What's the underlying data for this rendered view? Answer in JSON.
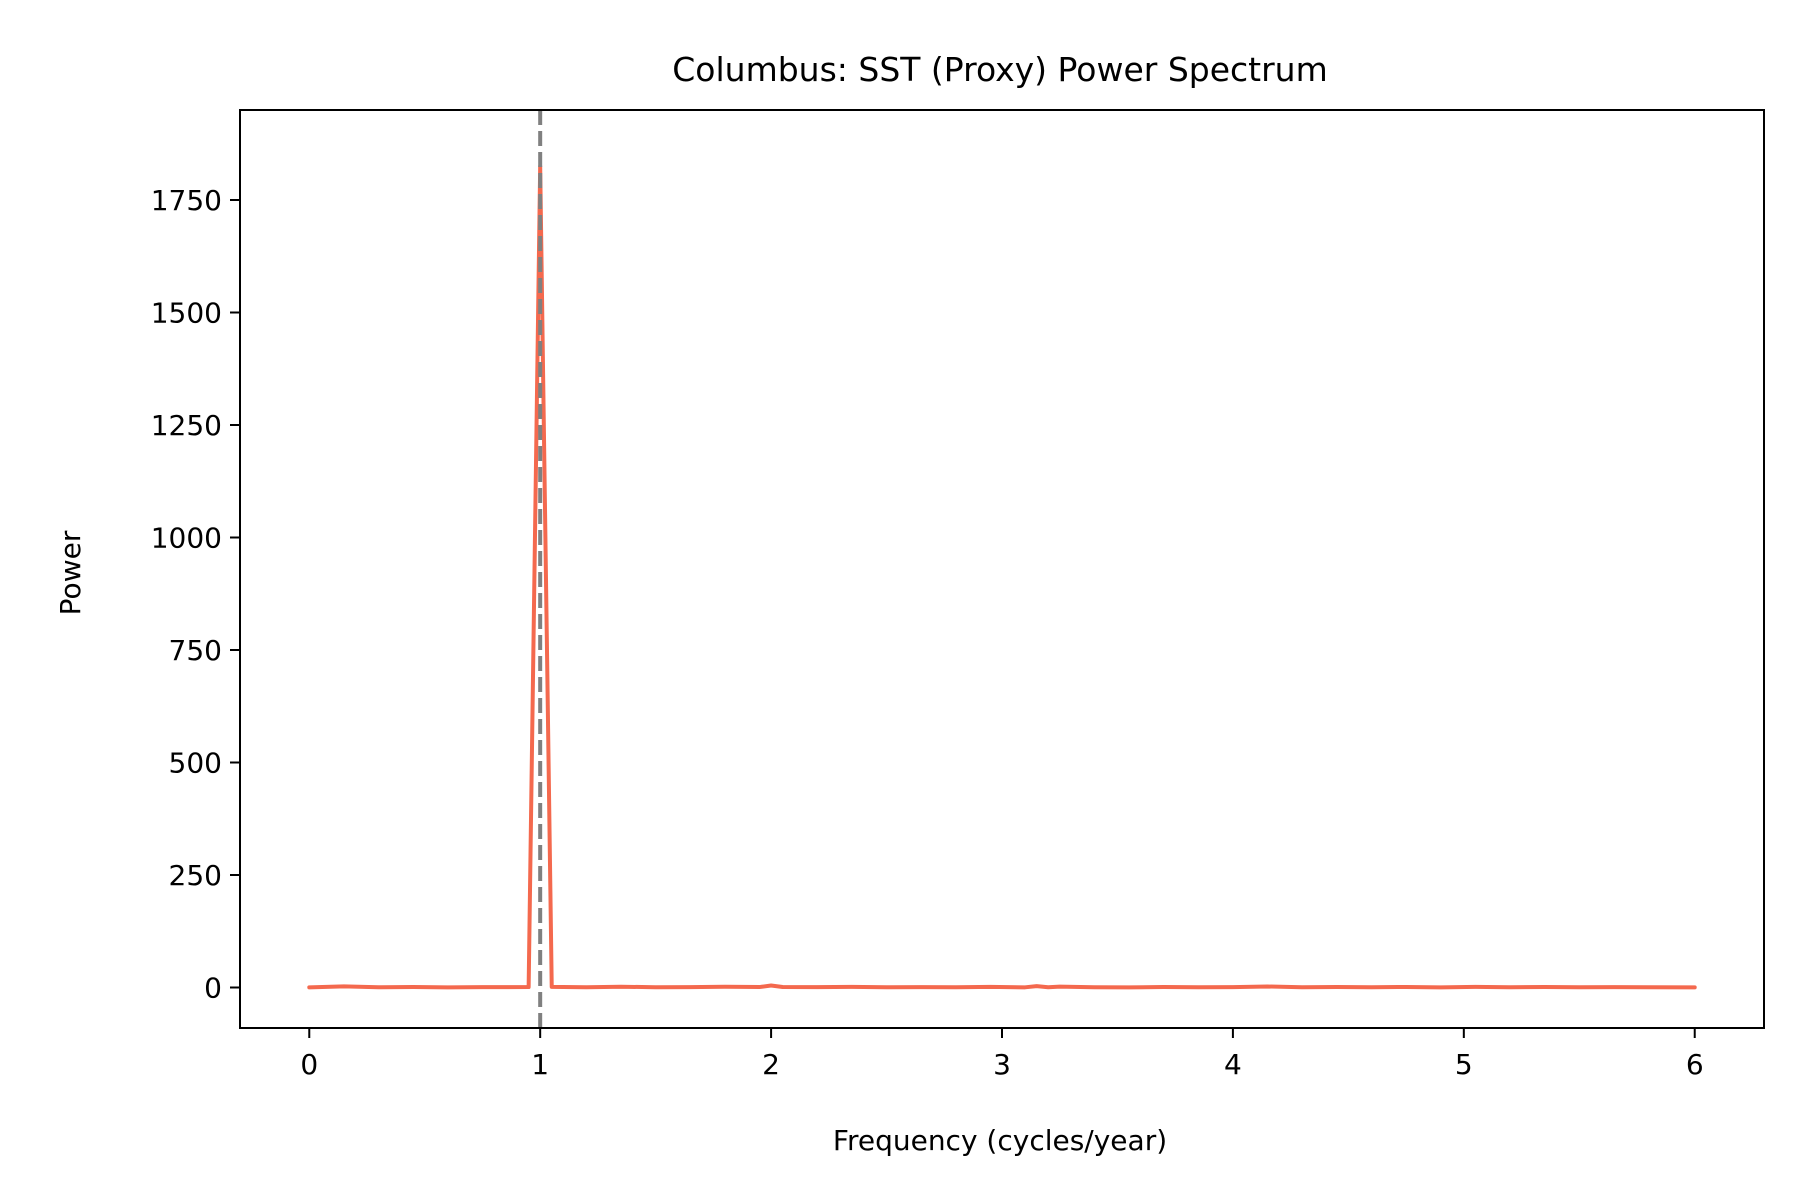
{
  "chart_data": {
    "type": "line",
    "title": "Columbus: SST (Proxy) Power Spectrum",
    "xlabel": "Frequency (cycles/year)",
    "ylabel": "Power",
    "xlim": [
      -0.3,
      6.3
    ],
    "ylim": [
      -90,
      1950
    ],
    "xticks": [
      0,
      1,
      2,
      3,
      4,
      5,
      6
    ],
    "yticks": [
      0,
      250,
      500,
      750,
      1000,
      1250,
      1500,
      1750
    ],
    "grid": false,
    "legend": "none",
    "series": [
      {
        "color": "#f4694e",
        "x": [
          0.0,
          0.15,
          0.3,
          0.45,
          0.6,
          0.75,
          0.95,
          1.0,
          1.05,
          1.2,
          1.35,
          1.5,
          1.65,
          1.8,
          1.95,
          2.0,
          2.05,
          2.2,
          2.35,
          2.5,
          2.65,
          2.8,
          2.95,
          3.1,
          3.15,
          3.2,
          3.25,
          3.4,
          3.55,
          3.7,
          3.85,
          4.0,
          4.15,
          4.3,
          4.45,
          4.6,
          4.75,
          4.9,
          5.05,
          5.2,
          5.35,
          5.5,
          5.65,
          5.8,
          6.0
        ],
        "y": [
          0.3,
          2.5,
          0.5,
          1.2,
          0.4,
          0.8,
          1.0,
          1825,
          1.5,
          0.6,
          1.8,
          0.5,
          0.9,
          1.6,
          1.0,
          4.5,
          1.2,
          0.8,
          1.3,
          0.5,
          0.7,
          0.6,
          1.4,
          0.4,
          3.0,
          0.5,
          2.0,
          0.6,
          0.4,
          1.0,
          0.5,
          0.7,
          2.2,
          0.6,
          1.0,
          0.5,
          1.2,
          0.4,
          1.3,
          0.6,
          1.0,
          0.5,
          0.8,
          0.5,
          0.3
        ]
      }
    ],
    "reference_lines": [
      {
        "type": "vertical",
        "x": 1.0,
        "color": "#808080",
        "style": "dashed"
      }
    ],
    "style": {
      "axes_color": "#000000",
      "background": "#ffffff"
    }
  }
}
